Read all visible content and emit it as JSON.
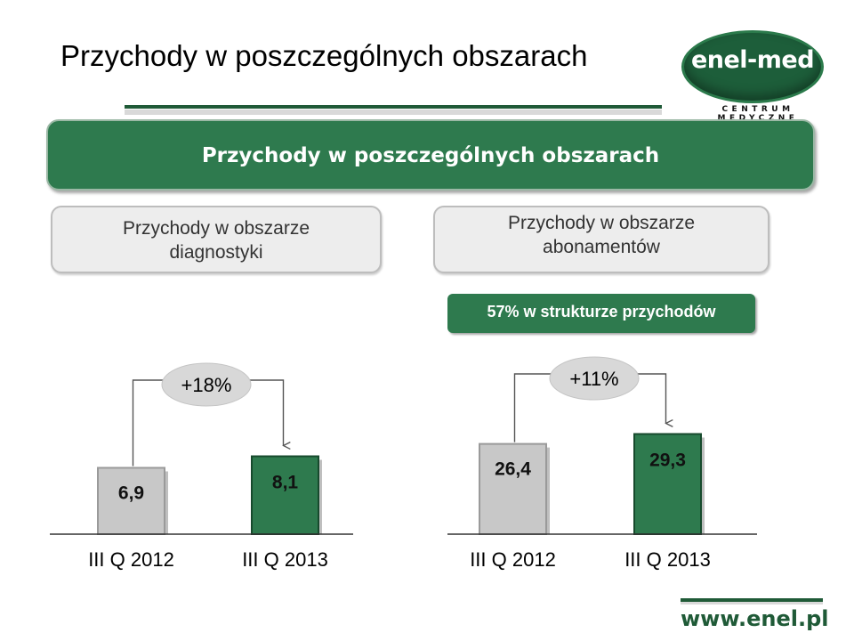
{
  "slide": {
    "title": "Przychody w poszczególnych obszarach"
  },
  "logo": {
    "word": "enel-med",
    "subtitle": "CENTRUM MEDYCZNE"
  },
  "banner": {
    "text": "Przychody w poszczególnych obszarach"
  },
  "boxes": [
    {
      "line1": "Przychody w obszarze",
      "line2": "diagnostyki"
    },
    {
      "line1": "Przychody w obszarze",
      "line2": "abonamentów"
    }
  ],
  "highlight": {
    "text": "57% w strukturze przychodów"
  },
  "footer": {
    "url": "www.enel.pl"
  },
  "colors": {
    "accent": "#2e7a4e",
    "grey_bar": "#c8c8c8",
    "dark_green": "#1f5a37"
  },
  "chart_data": [
    {
      "type": "bar",
      "categories": [
        "III Q 2012",
        "III Q 2013"
      ],
      "values": [
        6.9,
        8.1
      ],
      "value_labels": [
        "6,9",
        "8,1"
      ],
      "growth_label": "+18%"
    },
    {
      "type": "bar",
      "categories": [
        "III Q 2012",
        "III Q 2013"
      ],
      "values": [
        26.4,
        29.3
      ],
      "value_labels": [
        "26,4",
        "29,3"
      ],
      "growth_label": "+11%"
    }
  ]
}
